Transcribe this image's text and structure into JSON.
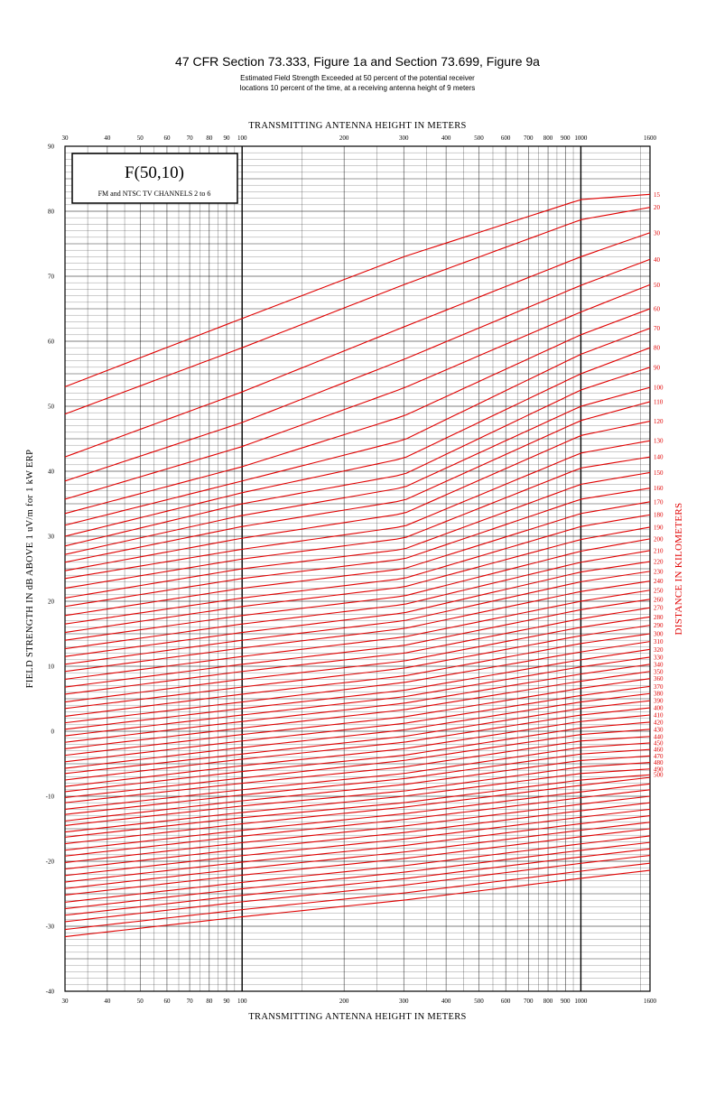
{
  "title": "47 CFR Section 73.333, Figure 1a and Section 73.699, Figure 9a",
  "subtitle_lines": [
    "Estimated Field Strength Exceeded at 50 percent of the potential receiver",
    "locations 10 percent of the time, at a receiving antenna height of 9 meters"
  ],
  "legend_box": {
    "heading": "F(50,10)",
    "subheading": "FM and NTSC TV CHANNELS 2 to 6"
  },
  "colors": {
    "curve": "#e00000",
    "grid": "#000000",
    "text": "#000000"
  },
  "chart_data": {
    "type": "line",
    "title": "F(50,10)",
    "xlabel_top": "TRANSMITTING ANTENNA HEIGHT IN METERS",
    "xlabel": "TRANSMITTING ANTENNA HEIGHT IN METERS",
    "ylabel": "FIELD STRENGTH IN dB ABOVE 1 uV/m for 1 kW ERP",
    "right_label": "DISTANCE IN KILOMETERS",
    "x_scale": "log",
    "xlim": [
      30,
      1600
    ],
    "ylim": [
      -40,
      90
    ],
    "grid": true,
    "x_ticks": [
      30,
      40,
      50,
      60,
      70,
      80,
      90,
      100,
      200,
      300,
      400,
      500,
      600,
      700,
      800,
      900,
      1000,
      1600
    ],
    "y_ticks": [
      -40,
      -30,
      -20,
      -10,
      0,
      10,
      20,
      30,
      40,
      50,
      60,
      70,
      80,
      90
    ],
    "x_reference": [
      30,
      100,
      300,
      1000,
      1600
    ],
    "series": [
      {
        "name": "15",
        "values": [
          53.0,
          63.5,
          73.0,
          81.8,
          82.6
        ]
      },
      {
        "name": "20",
        "values": [
          48.8,
          59.0,
          68.7,
          78.7,
          80.6
        ]
      },
      {
        "name": "30",
        "values": [
          42.2,
          52.2,
          62.2,
          73.0,
          76.7
        ]
      },
      {
        "name": "40",
        "values": [
          38.5,
          47.5,
          57.2,
          68.6,
          72.6
        ]
      },
      {
        "name": "50",
        "values": [
          35.7,
          43.8,
          52.8,
          64.5,
          68.7
        ]
      },
      {
        "name": "60",
        "values": [
          33.5,
          40.7,
          48.5,
          61.0,
          65.0
        ]
      },
      {
        "name": "70",
        "values": [
          31.7,
          38.5,
          44.8,
          58.0,
          62.0
        ]
      },
      {
        "name": "80",
        "values": [
          30.0,
          36.7,
          42.0,
          55.0,
          59.0
        ]
      },
      {
        "name": "90",
        "values": [
          28.5,
          35.0,
          39.5,
          52.5,
          56.0
        ]
      },
      {
        "name": "100",
        "values": [
          27.2,
          33.2,
          37.5,
          50.0,
          52.9
        ]
      },
      {
        "name": "110",
        "values": [
          26.0,
          31.5,
          35.5,
          47.8,
          50.7
        ]
      },
      {
        "name": "120",
        "values": [
          24.7,
          29.7,
          33.5,
          45.5,
          47.7
        ]
      },
      {
        "name": "130",
        "values": [
          23.5,
          28.0,
          31.5,
          42.8,
          44.7
        ]
      },
      {
        "name": "140",
        "values": [
          22.0,
          26.5,
          29.7,
          40.5,
          42.2
        ]
      },
      {
        "name": "150",
        "values": [
          20.5,
          25.0,
          28.0,
          38.0,
          39.8
        ]
      },
      {
        "name": "160",
        "values": [
          19.2,
          23.5,
          26.5,
          35.7,
          37.4
        ]
      },
      {
        "name": "170",
        "values": [
          17.8,
          22.0,
          25.0,
          33.5,
          35.3
        ]
      },
      {
        "name": "180",
        "values": [
          16.5,
          20.5,
          23.5,
          31.5,
          33.3
        ]
      },
      {
        "name": "190",
        "values": [
          15.2,
          19.2,
          22.2,
          29.5,
          31.4
        ]
      },
      {
        "name": "200",
        "values": [
          14.0,
          17.8,
          20.8,
          27.7,
          29.6
        ]
      },
      {
        "name": "210",
        "values": [
          12.7,
          16.5,
          19.5,
          26.0,
          27.8
        ]
      },
      {
        "name": "220",
        "values": [
          11.5,
          15.2,
          18.2,
          24.5,
          26.1
        ]
      },
      {
        "name": "230",
        "values": [
          10.3,
          14.0,
          17.0,
          23.0,
          24.6
        ]
      },
      {
        "name": "240",
        "values": [
          9.2,
          12.8,
          15.8,
          21.5,
          23.1
        ]
      },
      {
        "name": "250",
        "values": [
          8.0,
          11.5,
          14.5,
          20.0,
          21.7
        ]
      },
      {
        "name": "260",
        "values": [
          6.8,
          10.3,
          13.2,
          18.7,
          20.3
        ]
      },
      {
        "name": "270",
        "values": [
          5.7,
          9.2,
          12.0,
          17.3,
          19.0
        ]
      },
      {
        "name": "280",
        "values": [
          4.5,
          8.0,
          10.8,
          16.0,
          17.6
        ]
      },
      {
        "name": "290",
        "values": [
          3.5,
          6.8,
          9.7,
          14.7,
          16.3
        ]
      },
      {
        "name": "300",
        "values": [
          2.3,
          5.7,
          8.5,
          13.5,
          15.0
        ]
      },
      {
        "name": "310",
        "values": [
          1.3,
          4.5,
          7.5,
          12.2,
          13.8
        ]
      },
      {
        "name": "320",
        "values": [
          0.3,
          3.5,
          6.3,
          11.0,
          12.6
        ]
      },
      {
        "name": "330",
        "values": [
          -0.7,
          2.5,
          5.3,
          9.9,
          11.4
        ]
      },
      {
        "name": "340",
        "values": [
          -1.7,
          1.5,
          4.3,
          8.8,
          10.3
        ]
      },
      {
        "name": "350",
        "values": [
          -2.7,
          0.5,
          3.3,
          7.7,
          9.2
        ]
      },
      {
        "name": "360",
        "values": [
          -3.7,
          -0.5,
          2.2,
          6.6,
          8.1
        ]
      },
      {
        "name": "370",
        "values": [
          -4.7,
          -1.5,
          1.2,
          5.5,
          6.9
        ]
      },
      {
        "name": "380",
        "values": [
          -5.7,
          -2.5,
          0.2,
          4.5,
          5.8
        ]
      },
      {
        "name": "390",
        "values": [
          -6.5,
          -3.5,
          -0.8,
          3.5,
          4.7
        ]
      },
      {
        "name": "400",
        "values": [
          -7.5,
          -4.3,
          -1.7,
          2.5,
          3.6
        ]
      },
      {
        "name": "410",
        "values": [
          -8.5,
          -5.3,
          -2.7,
          1.5,
          2.5
        ]
      },
      {
        "name": "420",
        "values": [
          -9.3,
          -6.2,
          -3.7,
          0.5,
          1.4
        ]
      },
      {
        "name": "430",
        "values": [
          -10.2,
          -7.2,
          -4.5,
          -0.5,
          0.3
        ]
      },
      {
        "name": "440",
        "values": [
          -11.0,
          -8.0,
          -5.5,
          -1.5,
          -0.8
        ]
      },
      {
        "name": "450",
        "values": [
          -12.0,
          -9.0,
          -6.5,
          -2.5,
          -1.8
        ]
      },
      {
        "name": "460",
        "values": [
          -12.8,
          -9.8,
          -7.3,
          -3.5,
          -2.8
        ]
      },
      {
        "name": "470",
        "values": [
          -13.8,
          -10.7,
          -8.2,
          -4.5,
          -3.8
        ]
      },
      {
        "name": "480",
        "values": [
          -14.5,
          -11.5,
          -9.2,
          -5.5,
          -4.8
        ]
      },
      {
        "name": "490",
        "values": [
          -15.5,
          -12.5,
          -10.0,
          -6.5,
          -5.8
        ]
      },
      {
        "name": "500",
        "values": [
          -16.3,
          -13.3,
          -11.0,
          -7.5,
          -6.7
        ]
      }
    ],
    "bottom_curves_at_30m": [
      -17.3,
      -18.3,
      -19.2,
      -20.2,
      -21.2,
      -22.2,
      -23.2,
      -24.2,
      -25.2,
      -26.3,
      -27.3,
      -28.3,
      -29.3,
      -30.5,
      -31.6
    ],
    "bottom_curves_rise_to_1600m": 10.2
  }
}
